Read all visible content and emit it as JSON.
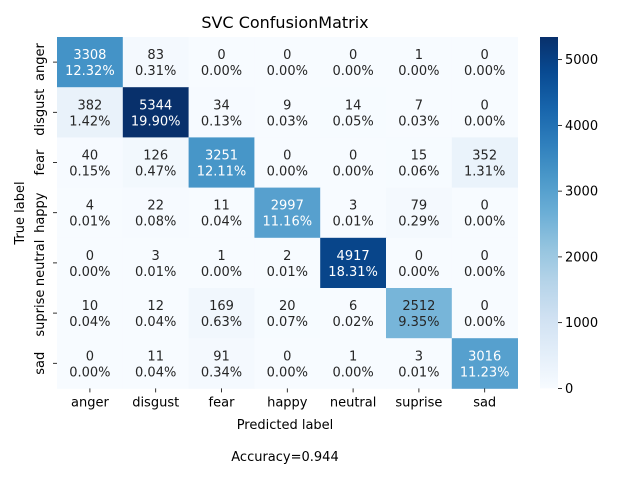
{
  "chart_data": {
    "type": "heatmap",
    "title": "SVC ConfusionMatrix",
    "xlabel": "Predicted label",
    "ylabel": "True label",
    "footer": "Accuracy=0.944",
    "x_categories": [
      "anger",
      "disgust",
      "fear",
      "happy",
      "neutral",
      "suprise",
      "sad"
    ],
    "y_categories": [
      "anger",
      "disgust",
      "fear",
      "happy",
      "neutral",
      "suprise",
      "sad"
    ],
    "values": [
      [
        3308,
        83,
        0,
        0,
        0,
        1,
        0
      ],
      [
        382,
        5344,
        34,
        9,
        14,
        7,
        0
      ],
      [
        40,
        126,
        3251,
        0,
        0,
        15,
        352
      ],
      [
        4,
        22,
        11,
        2997,
        3,
        79,
        0
      ],
      [
        0,
        3,
        1,
        2,
        4917,
        0,
        0
      ],
      [
        10,
        12,
        169,
        20,
        6,
        2512,
        0
      ],
      [
        0,
        11,
        91,
        0,
        1,
        3,
        3016
      ]
    ],
    "percentages": [
      [
        "12.32%",
        "0.31%",
        "0.00%",
        "0.00%",
        "0.00%",
        "0.00%",
        "0.00%"
      ],
      [
        "1.42%",
        "19.90%",
        "0.13%",
        "0.03%",
        "0.05%",
        "0.03%",
        "0.00%"
      ],
      [
        "0.15%",
        "0.47%",
        "12.11%",
        "0.00%",
        "0.00%",
        "0.06%",
        "1.31%"
      ],
      [
        "0.01%",
        "0.08%",
        "0.04%",
        "11.16%",
        "0.01%",
        "0.29%",
        "0.00%"
      ],
      [
        "0.00%",
        "0.01%",
        "0.00%",
        "0.01%",
        "18.31%",
        "0.00%",
        "0.00%"
      ],
      [
        "0.04%",
        "0.04%",
        "0.63%",
        "0.07%",
        "0.02%",
        "9.35%",
        "0.00%"
      ],
      [
        "0.00%",
        "0.04%",
        "0.34%",
        "0.00%",
        "0.00%",
        "0.01%",
        "11.23%"
      ]
    ],
    "colorbar": {
      "colormap": "Blues",
      "vmin": 0,
      "vmax": 5344,
      "ticks": [
        0,
        1000,
        2000,
        3000,
        4000,
        5000
      ]
    },
    "grid": false
  }
}
